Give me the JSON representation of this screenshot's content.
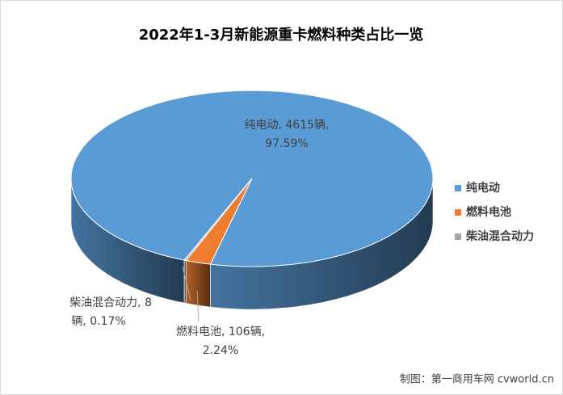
{
  "chart_data": {
    "type": "pie3d",
    "title": "2022年1-3月新能源重卡燃料种类占比一览",
    "categories": [
      "纯电动",
      "燃料电池",
      "柴油混合动力"
    ],
    "values": [
      4615,
      106,
      8
    ],
    "colors": [
      "#5b9bd5",
      "#ed7d31",
      "#a5a5a5"
    ],
    "percents": [
      97.59,
      2.24,
      0.17
    ],
    "data_labels": [
      [
        "纯电动, 4615辆,",
        "97.59%"
      ],
      [
        "燃料电池, 106辆,",
        "2.24%"
      ],
      [
        "柴油混合动力, 8",
        "辆, 0.17%"
      ]
    ],
    "legend": "right"
  },
  "source": "制图：第一商用车网 cvworld.cn"
}
